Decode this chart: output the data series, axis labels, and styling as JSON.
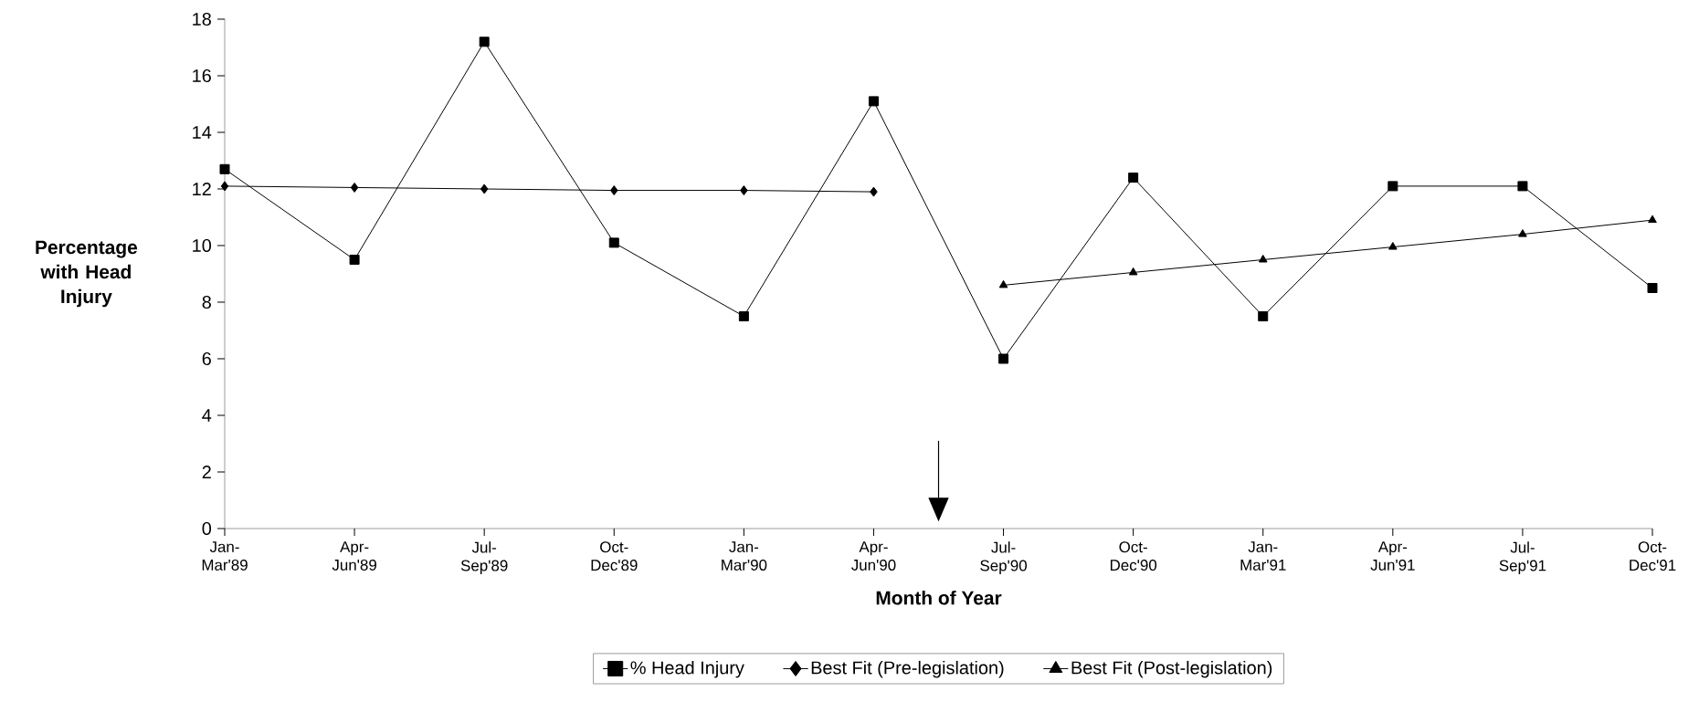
{
  "chart_data": {
    "type": "line",
    "xlabel": "Month of Year",
    "ylabel": "Percentage with Head Injury",
    "categories": [
      "Jan-Mar'89",
      "Apr-Jun'89",
      "Jul-Sep'89",
      "Oct-Dec'89",
      "Jan-Mar'90",
      "Apr-Jun'90",
      "Jul-Sep'90",
      "Oct-Dec'90",
      "Jan-Mar'91",
      "Apr-Jun'91",
      "Jul-Sep'91",
      "Oct-Dec'91"
    ],
    "series": [
      {
        "name": "% Head Injury",
        "color": "#000000",
        "marker": "square",
        "values": [
          12.7,
          9.5,
          17.2,
          10.1,
          7.5,
          15.1,
          6.0,
          12.4,
          7.5,
          12.1,
          12.1,
          8.5
        ]
      },
      {
        "name": "Best Fit (Pre-legislation)",
        "color": "#000000",
        "marker": "diamond",
        "values": [
          12.1,
          12.05,
          12.0,
          11.95,
          11.95,
          11.9,
          null,
          null,
          null,
          null,
          null,
          null
        ]
      },
      {
        "name": "Best Fit (Post-legislation)",
        "color": "#000000",
        "marker": "triangle",
        "values": [
          null,
          null,
          null,
          null,
          null,
          null,
          8.6,
          9.05,
          9.5,
          9.95,
          10.4,
          10.9
        ]
      }
    ],
    "ylim": [
      0,
      18
    ],
    "yticks": [
      0,
      2,
      4,
      6,
      8,
      10,
      12,
      14,
      16,
      18
    ],
    "grid": false,
    "legend": "bottom",
    "line_style": "solid"
  }
}
